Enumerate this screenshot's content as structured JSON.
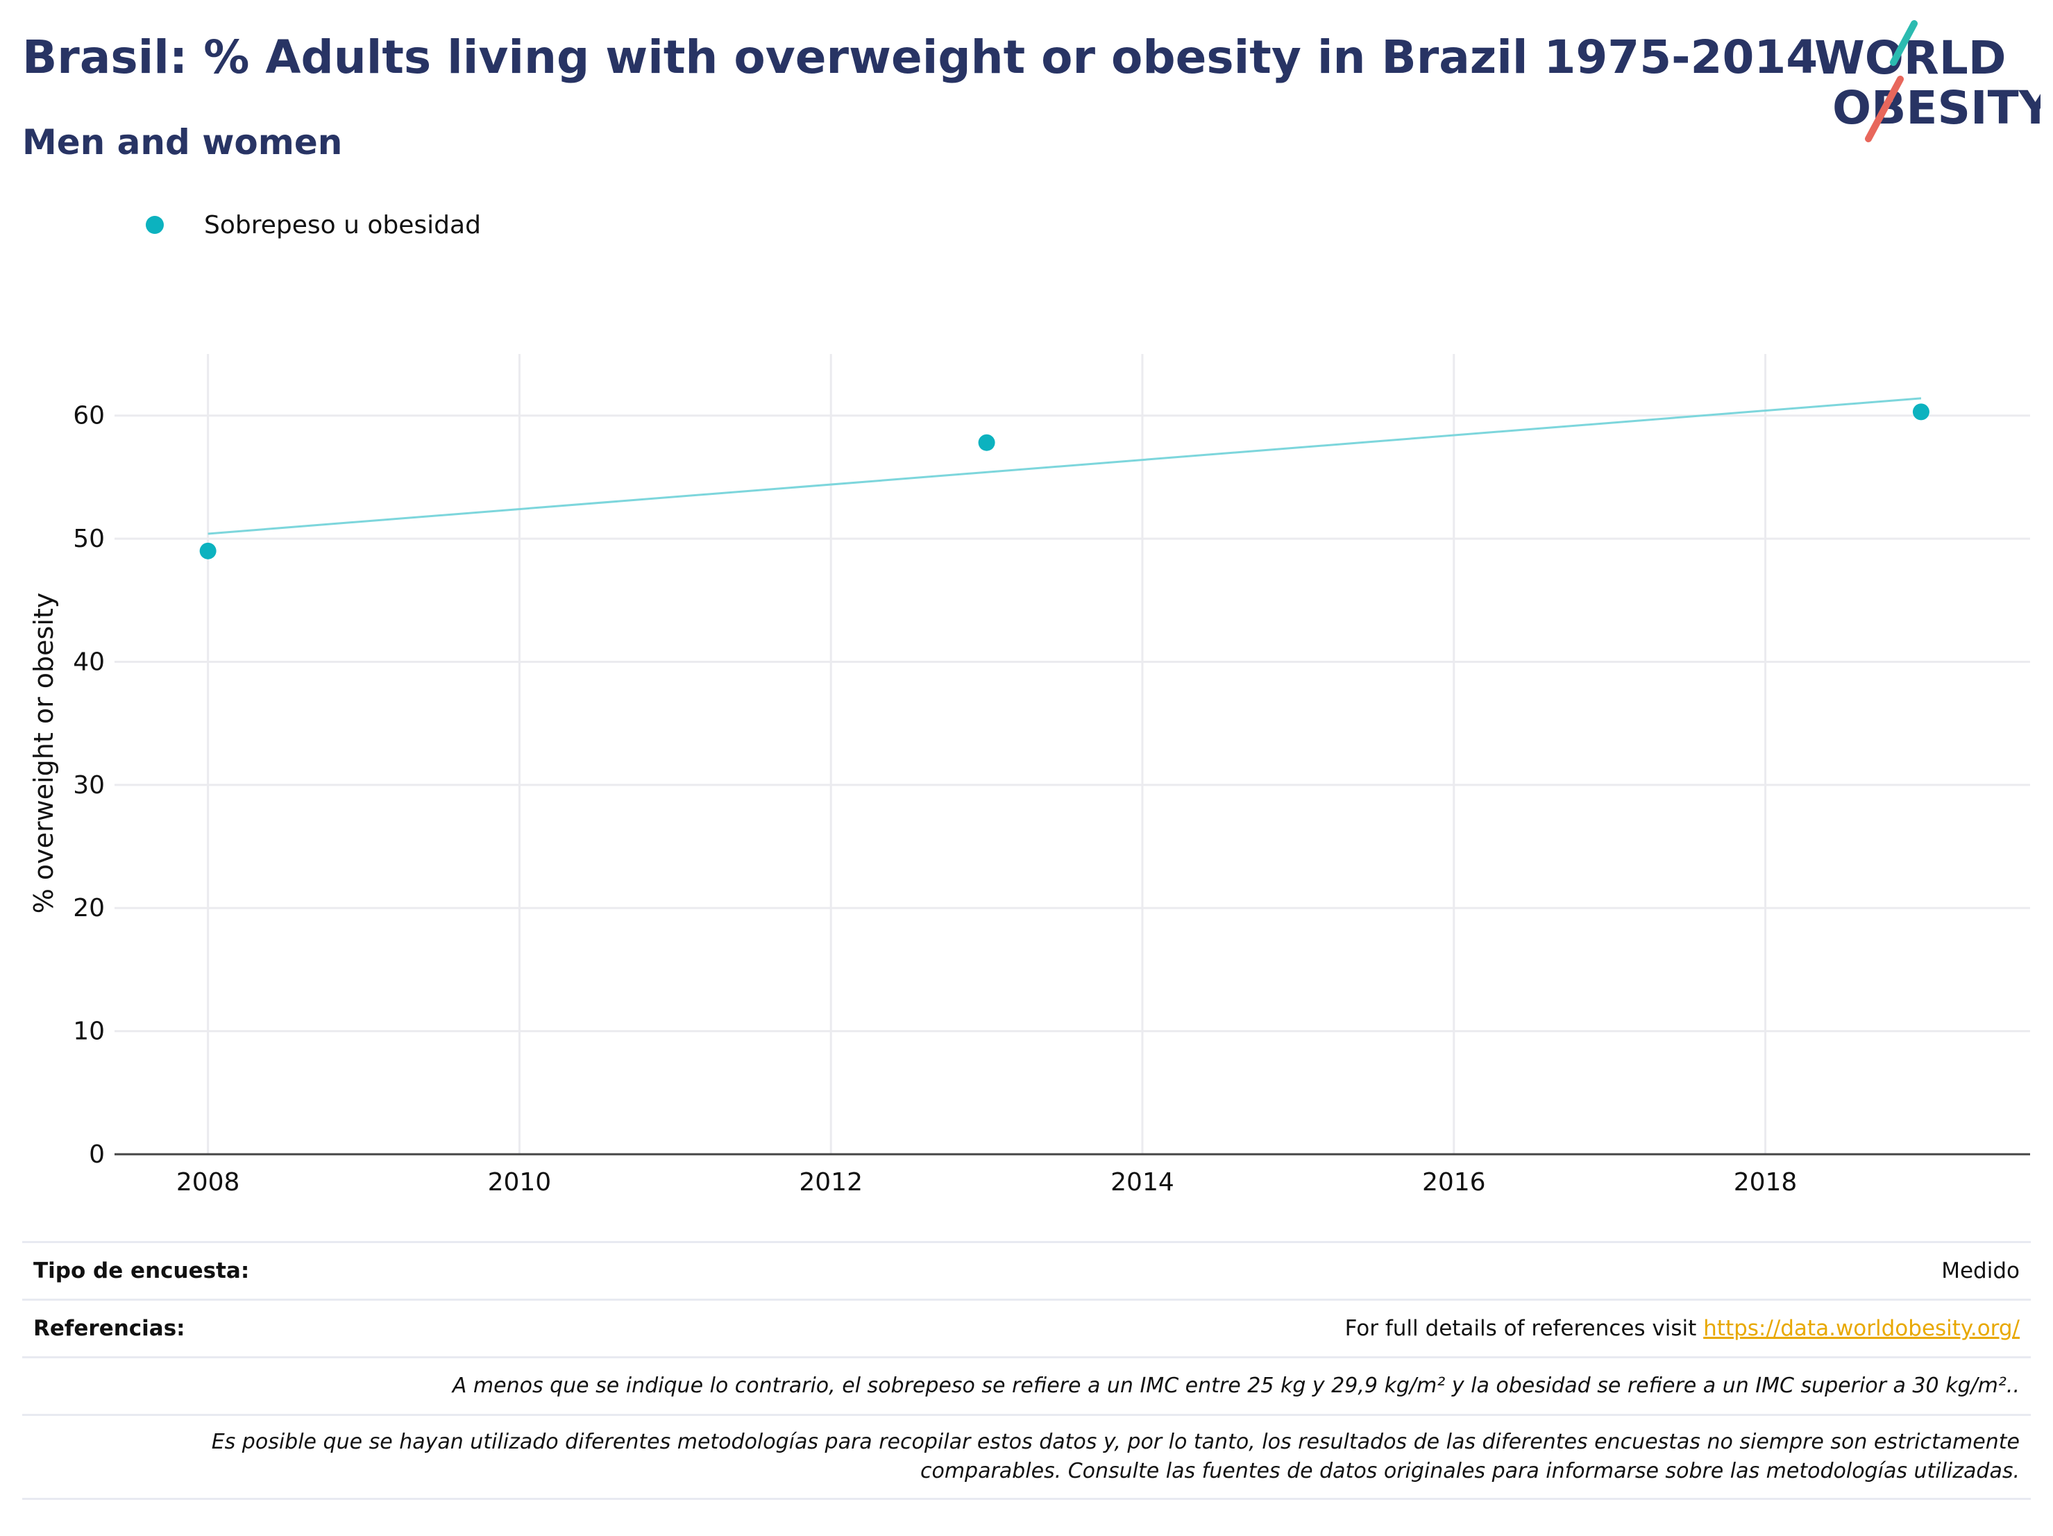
{
  "header": {
    "title": "Brasil: % Adults living with overweight or obesity in Brazil 1975-2014",
    "subtitle": "Men and women"
  },
  "logo": {
    "line1": "WORLD",
    "line2": "OBESITY",
    "accent_teal": "#2bbbb0",
    "accent_red": "#e8675c",
    "text_color": "#283464"
  },
  "legend": {
    "label": "Sobrepeso u obesidad",
    "color": "#0cb2bf"
  },
  "chart_data": {
    "type": "scatter",
    "title": "Brasil: % Adults living with overweight or obesity in Brazil 1975-2014",
    "subtitle": "Men and women",
    "xlabel": "",
    "ylabel": "% overweight or obesity",
    "xlim": [
      2007.4,
      2019.7
    ],
    "ylim": [
      0,
      65
    ],
    "xticks": [
      2008,
      2010,
      2012,
      2014,
      2016,
      2018
    ],
    "yticks": [
      0,
      10,
      20,
      30,
      40,
      50,
      60
    ],
    "grid": true,
    "legend_position": "top-left",
    "series": [
      {
        "name": "Sobrepeso u obesidad",
        "color": "#0cb2bf",
        "points": [
          {
            "x": 2008,
            "y": 49.0
          },
          {
            "x": 2013,
            "y": 57.8
          },
          {
            "x": 2019,
            "y": 60.3
          }
        ]
      }
    ],
    "trendline": {
      "color": "#7dd6dc",
      "start": {
        "x": 2008,
        "y": 50.4
      },
      "end": {
        "x": 2019,
        "y": 61.4
      }
    }
  },
  "info": {
    "survey_type_label": "Tipo de encuesta:",
    "survey_type_value": "Medido",
    "references_label": "Referencias:",
    "references_text": "For full details of references visit",
    "references_link": "https://data.worldobesity.org/",
    "note1": "A menos que se indique lo contrario, el sobrepeso se refiere a un IMC entre 25 kg y 29,9 kg/m² y la obesidad se refiere a un IMC superior a 30 kg/m²..",
    "note2_line1": "Es posible que se hayan utilizado diferentes metodologías para recopilar estos datos y, por lo tanto, los resultados de las diferentes encuestas no siempre son estrictamente",
    "note2_line2": "comparables. Consulte las fuentes de datos originales para informarse sobre las metodologías utilizadas."
  }
}
